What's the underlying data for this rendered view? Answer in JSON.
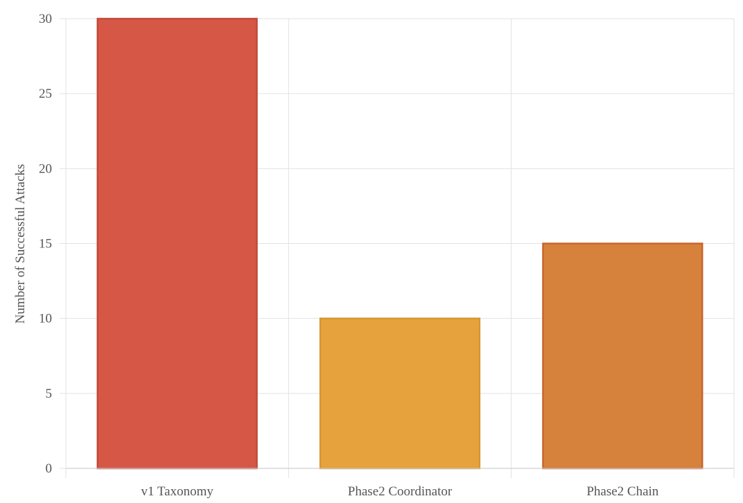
{
  "chart_data": {
    "type": "bar",
    "title": "",
    "xlabel": "",
    "ylabel": "Number of Successful Attacks",
    "categories": [
      "v1 Taxonomy",
      "Phase2 Coordinator",
      "Phase2 Chain"
    ],
    "values": [
      30,
      10,
      15
    ],
    "ylim": [
      0,
      30
    ],
    "yticks": [
      0,
      5,
      10,
      15,
      20,
      25,
      30
    ],
    "grid": true,
    "legend": "none",
    "colors": {
      "fills": [
        "#d65745",
        "#e6a23c",
        "#d6823c"
      ],
      "strokes": [
        "#c0493a",
        "#d89530",
        "#c9642e"
      ]
    }
  }
}
